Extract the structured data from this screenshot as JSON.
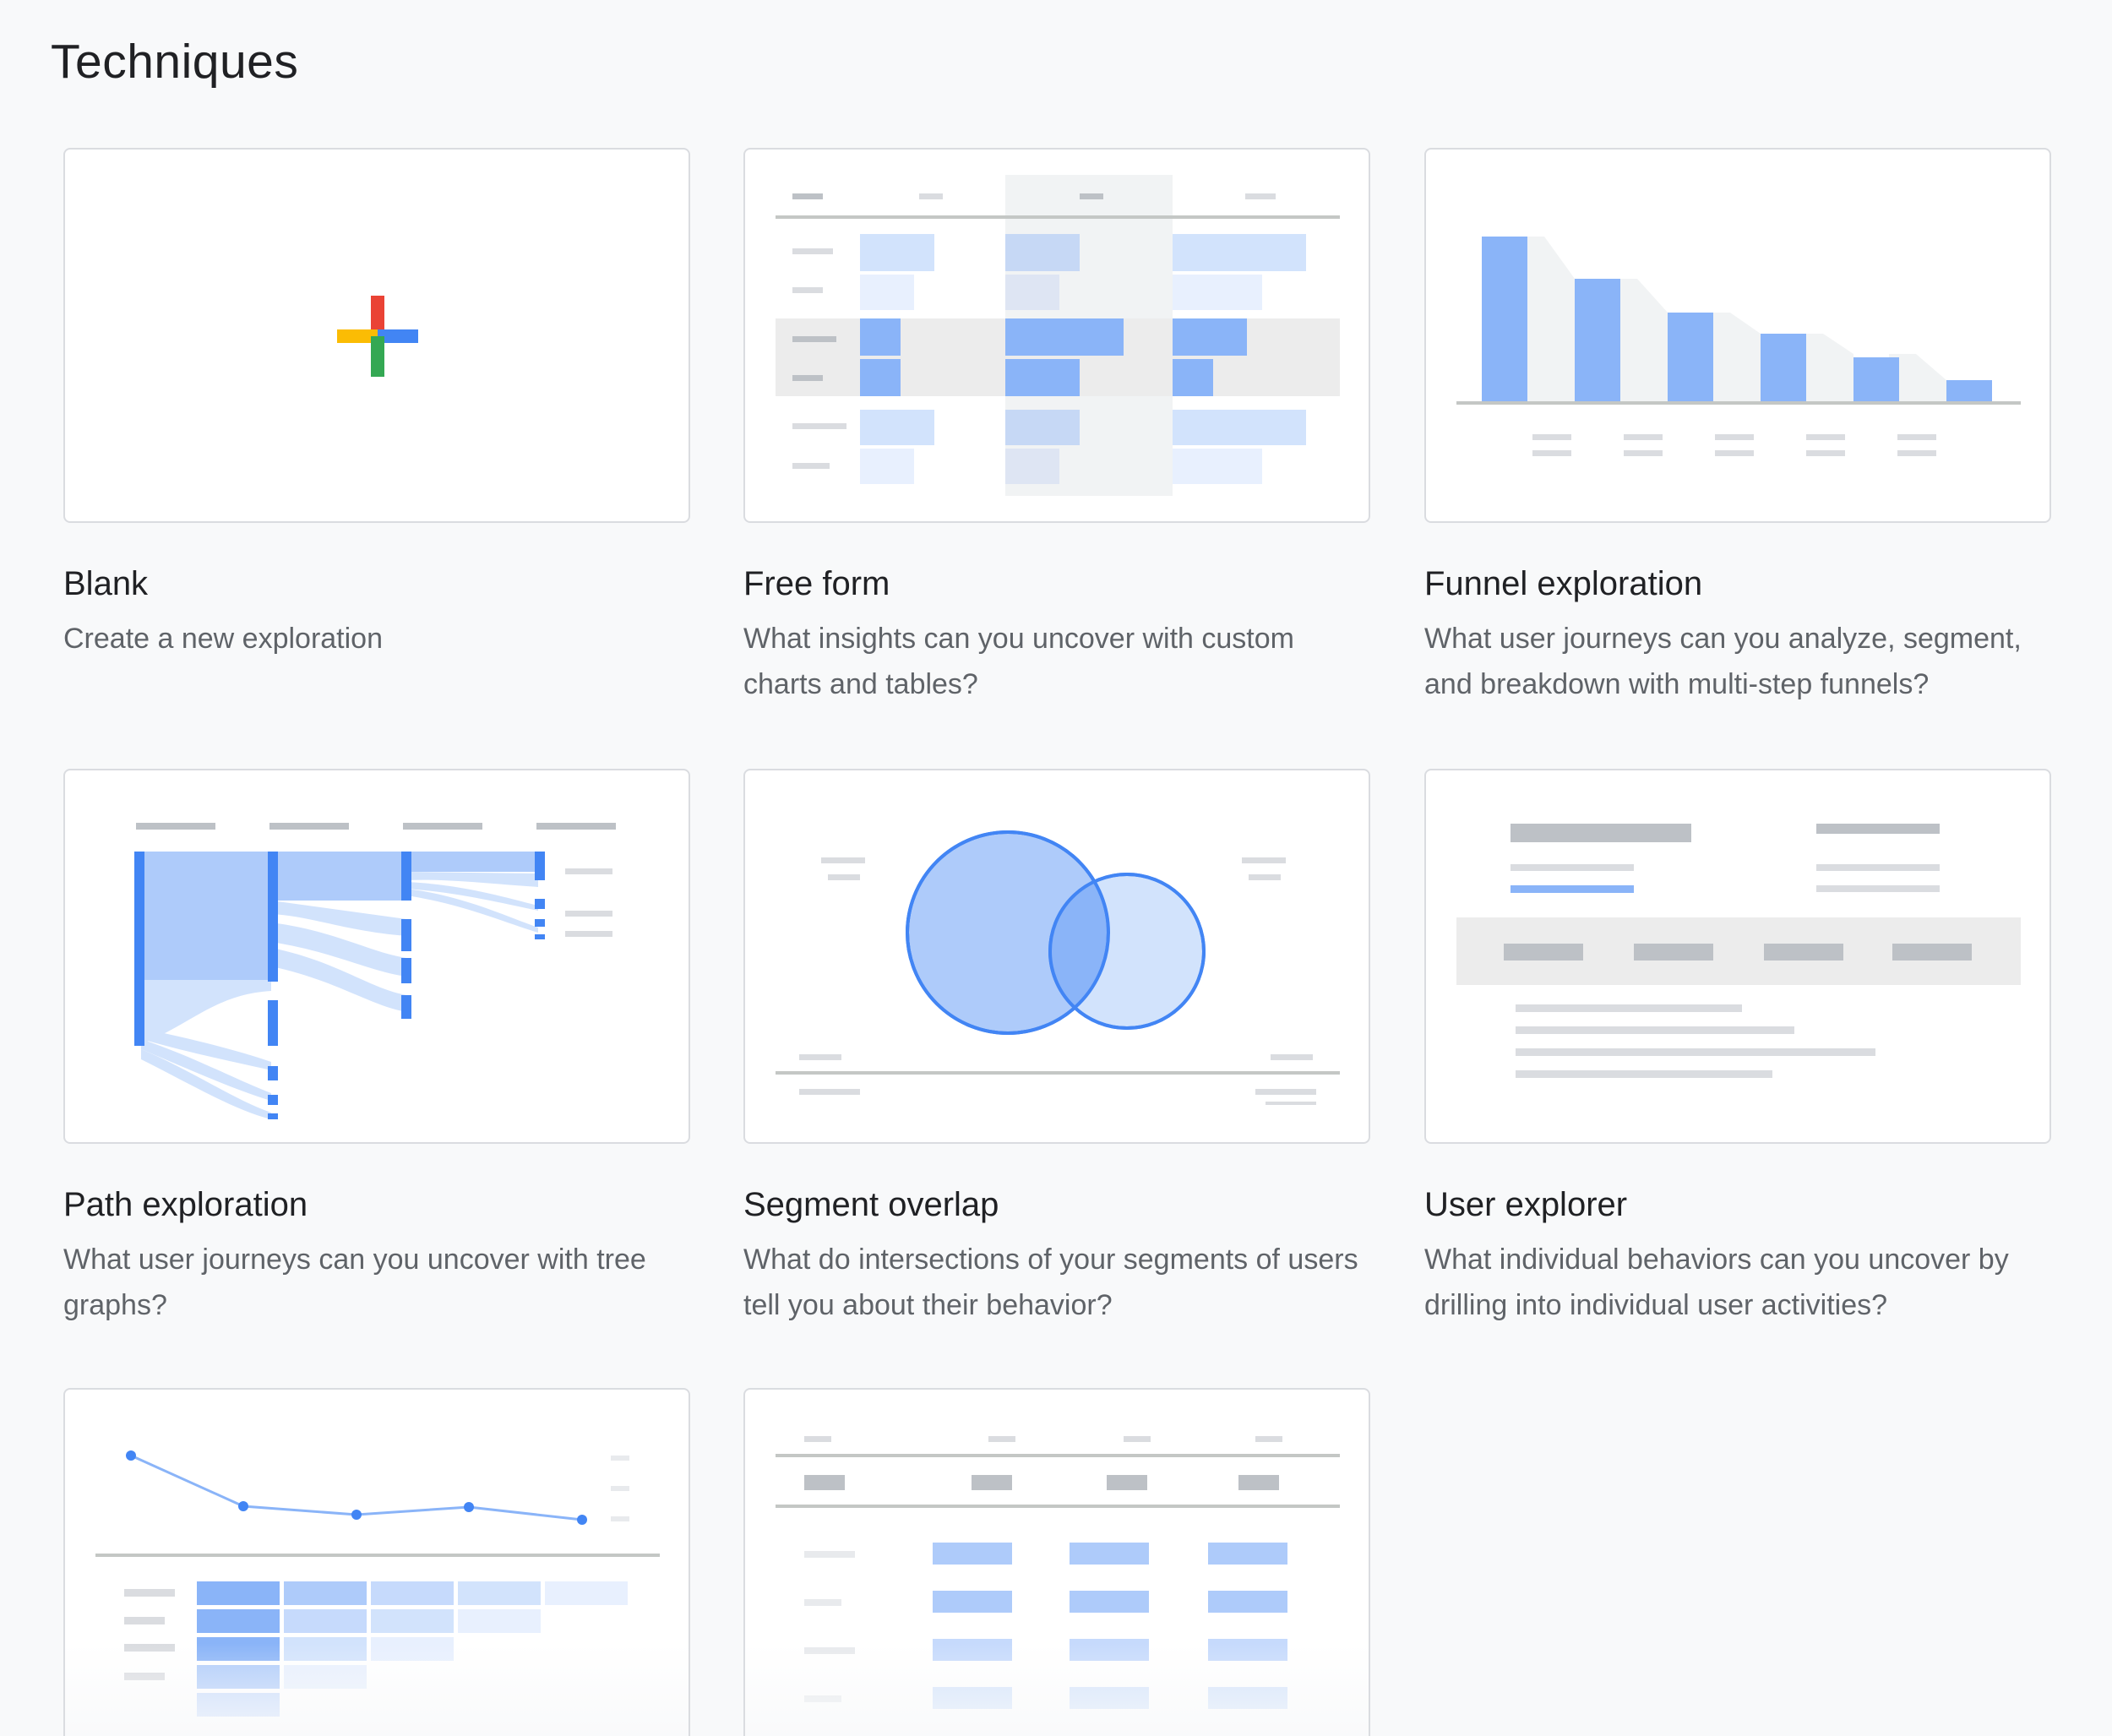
{
  "page_title": "Techniques",
  "cards": [
    {
      "title": "Blank",
      "description": "Create a new exploration"
    },
    {
      "title": "Free form",
      "description": "What insights can you uncover with custom charts and tables?"
    },
    {
      "title": "Funnel exploration",
      "description": "What user journeys can you analyze, segment, and breakdown with multi-step funnels?"
    },
    {
      "title": "Path exploration",
      "description": "What user journeys can you uncover with tree graphs?"
    },
    {
      "title": "Segment overlap",
      "description": "What do intersections of your segments of users tell you about their behavior?"
    },
    {
      "title": "User explorer",
      "description": "What individual behaviors can you uncover by drilling into individual user activities?"
    },
    {
      "title": "",
      "description": ""
    },
    {
      "title": "",
      "description": ""
    }
  ],
  "colors": {
    "blue": "#8ab4f8",
    "blue_light": "#d2e3fc",
    "blue_mid": "#aecbfa",
    "blue_dark": "#4285f4",
    "google_red": "#ea4335",
    "google_yellow": "#fbbc04",
    "google_green": "#34a853",
    "google_blue": "#4285f4",
    "gray_bar": "#dadce0"
  },
  "icons": [
    "plus-icon"
  ]
}
